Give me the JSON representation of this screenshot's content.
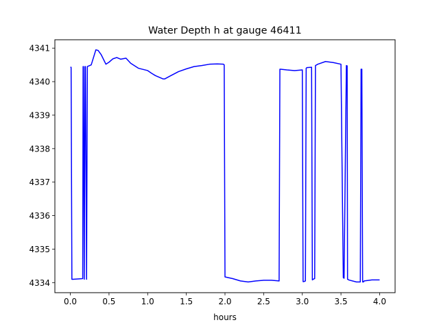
{
  "chart_data": {
    "type": "line",
    "title": "Water Depth h at gauge 46411",
    "xlabel": "hours",
    "ylabel": "",
    "xlim": [
      -0.2,
      4.2
    ],
    "ylim": [
      4333.7,
      4341.25
    ],
    "xticks": [
      0.0,
      0.5,
      1.0,
      1.5,
      2.0,
      2.5,
      3.0,
      3.5,
      4.0
    ],
    "xtick_labels": [
      "0.0",
      "0.5",
      "1.0",
      "1.5",
      "2.0",
      "2.5",
      "3.0",
      "3.5",
      "4.0"
    ],
    "yticks": [
      4334,
      4335,
      4336,
      4337,
      4338,
      4339,
      4340,
      4341
    ],
    "ytick_labels": [
      "4334",
      "4335",
      "4336",
      "4337",
      "4338",
      "4339",
      "4340",
      "4341"
    ],
    "grid": false,
    "series": [
      {
        "color": "#0000ff",
        "x": [
          0.0,
          0.01,
          0.02,
          0.03,
          0.16,
          0.165,
          0.17,
          0.18,
          0.19,
          0.195,
          0.21,
          0.22,
          0.27,
          0.33,
          0.36,
          0.4,
          0.46,
          0.5,
          0.55,
          0.6,
          0.65,
          0.72,
          0.78,
          0.88,
          1.0,
          1.05,
          1.1,
          1.2,
          1.22,
          1.3,
          1.4,
          1.5,
          1.6,
          1.7,
          1.8,
          1.9,
          1.98,
          1.99,
          2.0,
          2.1,
          2.2,
          2.3,
          2.4,
          2.5,
          2.6,
          2.7,
          2.71,
          2.72,
          2.8,
          2.9,
          3.0,
          3.01,
          3.02,
          3.04,
          3.05,
          3.06,
          3.12,
          3.13,
          3.14,
          3.16,
          3.17,
          3.2,
          3.3,
          3.4,
          3.5,
          3.53,
          3.54,
          3.57,
          3.58,
          3.585,
          3.59,
          3.6,
          3.7,
          3.75,
          3.76,
          3.77,
          3.78,
          3.79,
          3.8,
          3.9,
          4.0
        ],
        "y": [
          4340.43,
          4340.43,
          4334.1,
          4334.1,
          4334.12,
          4340.45,
          4340.45,
          4334.1,
          4340.45,
          4340.45,
          4334.1,
          4340.45,
          4340.5,
          4340.95,
          4340.93,
          4340.8,
          4340.52,
          4340.58,
          4340.68,
          4340.72,
          4340.67,
          4340.7,
          4340.55,
          4340.4,
          4340.33,
          4340.25,
          4340.18,
          4340.08,
          4340.08,
          4340.18,
          4340.3,
          4340.38,
          4340.45,
          4340.48,
          4340.52,
          4340.53,
          4340.52,
          4340.5,
          4334.17,
          4334.12,
          4334.05,
          4334.02,
          4334.05,
          4334.07,
          4334.07,
          4334.05,
          4340.37,
          4340.37,
          4340.35,
          4340.33,
          4340.35,
          4334.03,
          4334.03,
          4334.05,
          4340.4,
          4340.42,
          4340.43,
          4334.08,
          4334.1,
          4334.12,
          4340.48,
          4340.52,
          4340.6,
          4340.57,
          4340.52,
          4334.15,
          4334.13,
          4340.48,
          4340.47,
          4334.1,
          4334.1,
          4334.08,
          4334.02,
          4334.02,
          4340.37,
          4340.37,
          4334.02,
          4334.02,
          4334.05,
          4334.08,
          4334.08
        ]
      }
    ]
  }
}
